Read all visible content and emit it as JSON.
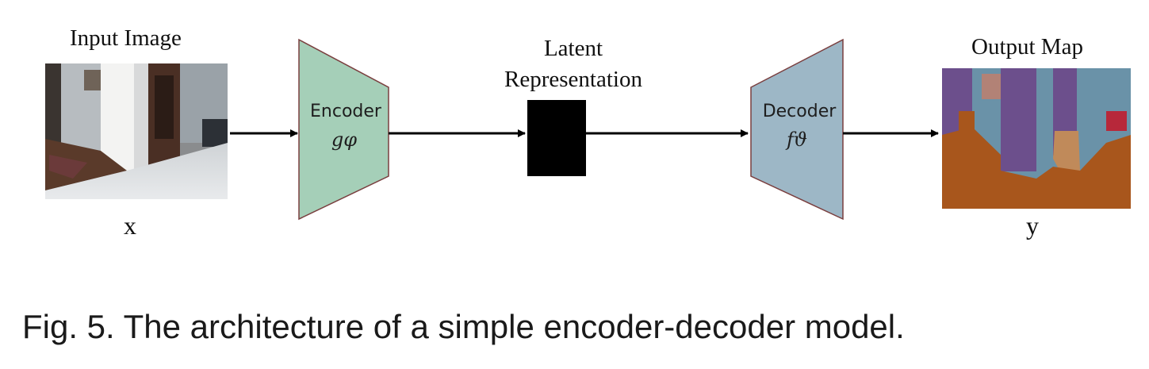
{
  "labels": {
    "input_title": "Input Image",
    "latent_title_line1": "Latent",
    "latent_title_line2": "Representation",
    "output_title": "Output Map",
    "input_var": "x",
    "output_var": "y"
  },
  "encoder": {
    "label": "Encoder",
    "symbol": "gφ",
    "color": "#a5cfb8"
  },
  "decoder": {
    "label": "Decoder",
    "symbol": "fϑ",
    "color": "#9db7c6"
  },
  "latent": {
    "color": "#000000"
  },
  "caption": "Fig. 5. The architecture of a simple encoder-decoder model."
}
